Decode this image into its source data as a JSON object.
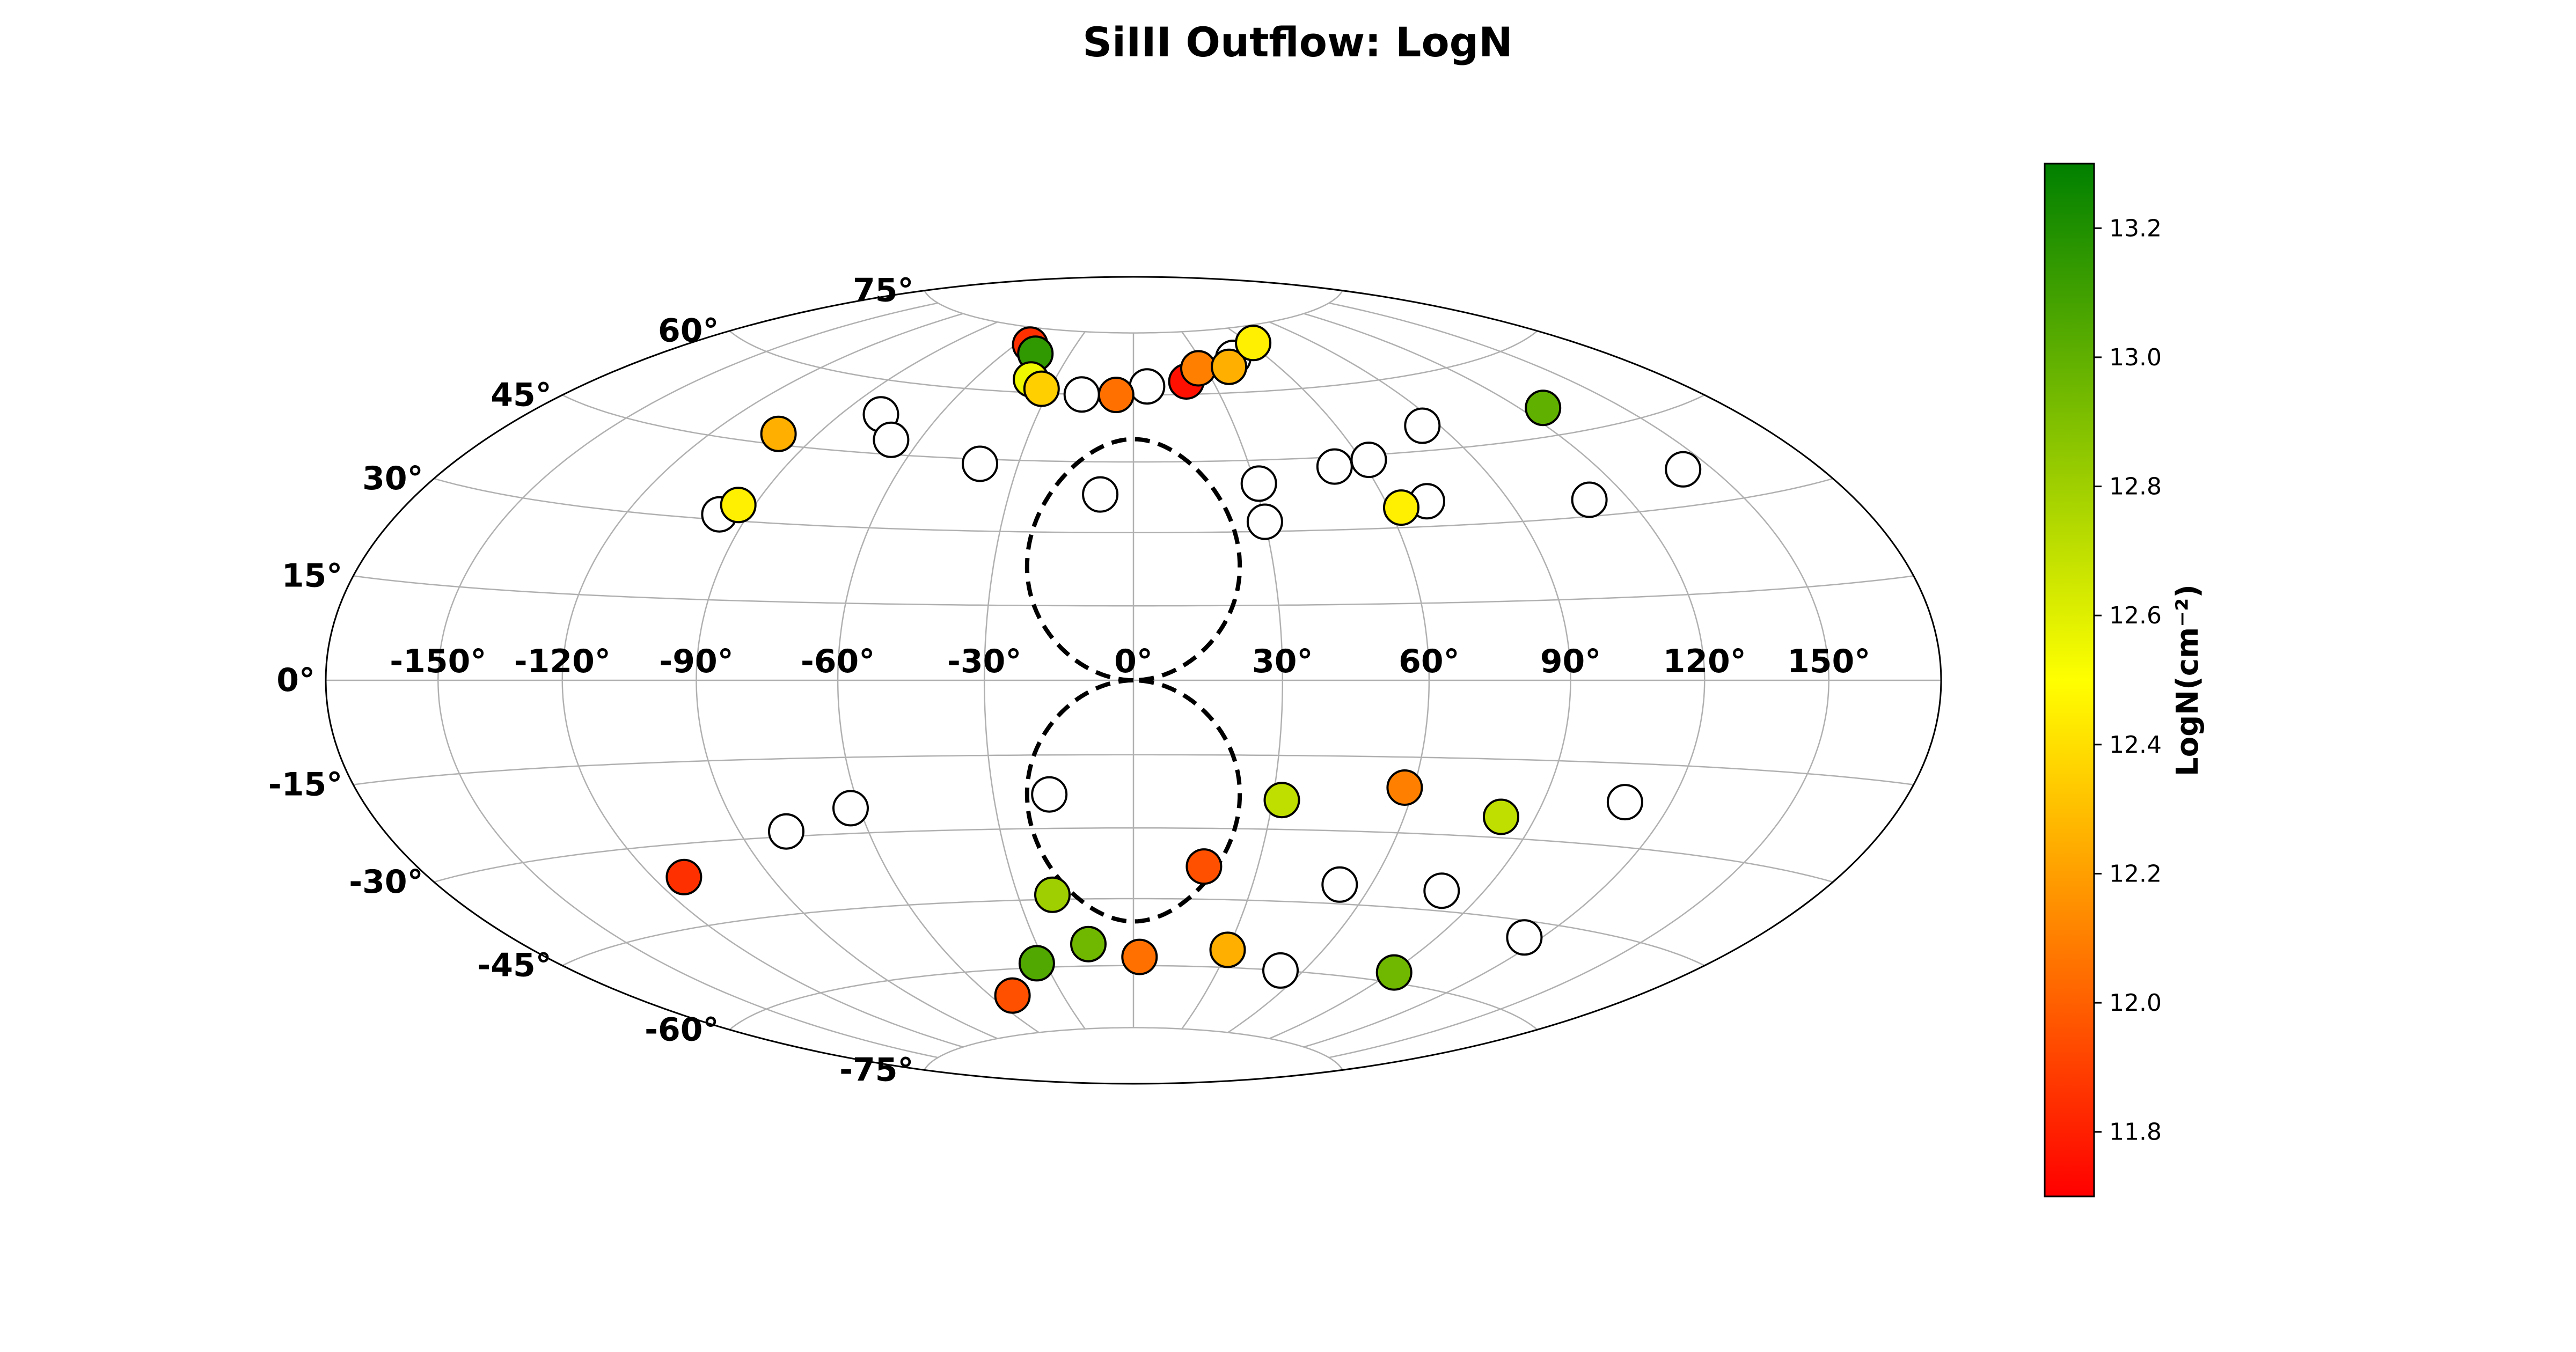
{
  "chart_data": {
    "type": "scatter",
    "projection": "aitoff-hammer",
    "title": "SiIII Outflow: LogN",
    "lon_tick_labels": [
      "-150°",
      "-120°",
      "-90°",
      "-60°",
      "-30°",
      "0°",
      "30°",
      "60°",
      "90°",
      "120°",
      "150°"
    ],
    "lon_ticks": [
      -150,
      -120,
      -90,
      -60,
      -30,
      0,
      30,
      60,
      90,
      120,
      150
    ],
    "lat_tick_labels": [
      "-75°",
      "-60°",
      "-45°",
      "-30°",
      "-15°",
      "0°",
      "15°",
      "30°",
      "45°",
      "60°",
      "75°"
    ],
    "lat_ticks": [
      -75,
      -60,
      -45,
      -30,
      -15,
      0,
      15,
      30,
      45,
      60,
      75
    ],
    "grid": true,
    "colorbar": {
      "label": "LogN(cm⁻²)",
      "vmin": 11.7,
      "vmax": 13.3,
      "colors": [
        "#ff0000",
        "#ffff00",
        "#008000"
      ],
      "tick_values": [
        11.8,
        12.0,
        12.2,
        12.4,
        12.6,
        12.8,
        13.0,
        13.2
      ],
      "tick_labels": [
        "11.8",
        "12.0",
        "12.2",
        "12.4",
        "12.6",
        "12.8",
        "13.0",
        "13.2"
      ]
    },
    "bubbles": {
      "style": "dashed",
      "lat_extent": 50,
      "lon_halfwidth": 24
    },
    "detections": [
      {
        "lon": -94,
        "lat": 33,
        "logN": 12.45
      },
      {
        "lon": -101,
        "lat": 47,
        "logN": 12.25
      },
      {
        "lon": -53,
        "lat": 71,
        "logN": 11.85
      },
      {
        "lon": -46,
        "lat": 69,
        "logN": 13.15
      },
      {
        "lon": -39,
        "lat": 63,
        "logN": 12.55
      },
      {
        "lon": -33,
        "lat": 61,
        "logN": 12.35
      },
      {
        "lon": -6,
        "lat": 60,
        "logN": 12.05
      },
      {
        "lon": 20,
        "lat": 63,
        "logN": 11.75
      },
      {
        "lon": 27,
        "lat": 66,
        "logN": 12.1
      },
      {
        "lon": 40,
        "lat": 66,
        "logN": 12.25
      },
      {
        "lon": 62,
        "lat": 71,
        "logN": 12.45
      },
      {
        "lon": 127,
        "lat": 50,
        "logN": 13.0
      },
      {
        "lon": 63,
        "lat": 34,
        "logN": 12.45
      },
      {
        "lon": 32,
        "lat": -24,
        "logN": 12.7
      },
      {
        "lon": 58,
        "lat": -21,
        "logN": 12.1
      },
      {
        "lon": 82,
        "lat": -26,
        "logN": 12.7
      },
      {
        "lon": 17,
        "lat": -38,
        "logN": 11.95
      },
      {
        "lon": 30,
        "lat": -56,
        "logN": 12.25
      },
      {
        "lon": 2,
        "lat": -58,
        "logN": 12.05
      },
      {
        "lon": -21,
        "lat": -44,
        "logN": 12.8
      },
      {
        "lon": -14,
        "lat": -55,
        "logN": 12.95
      },
      {
        "lon": -33,
        "lat": -59,
        "logN": 13.05
      },
      {
        "lon": -51,
        "lat": -66,
        "logN": 11.95
      },
      {
        "lon": -112,
        "lat": -36,
        "logN": 11.85
      },
      {
        "lon": 91,
        "lat": -58,
        "logN": 12.95
      }
    ],
    "non_detections": [
      {
        "lon": -78,
        "lat": 53
      },
      {
        "lon": -68,
        "lat": 48
      },
      {
        "lon": -97,
        "lat": 31
      },
      {
        "lon": -40,
        "lat": 44
      },
      {
        "lon": -18,
        "lat": 60
      },
      {
        "lon": 5,
        "lat": 62
      },
      {
        "lon": 45,
        "lat": 68
      },
      {
        "lon": -8,
        "lat": 38
      },
      {
        "lon": 31,
        "lat": 40
      },
      {
        "lon": 52,
        "lat": 43
      },
      {
        "lon": 62,
        "lat": 44
      },
      {
        "lon": 85,
        "lat": 50
      },
      {
        "lon": 30,
        "lat": 32
      },
      {
        "lon": 70,
        "lat": 35
      },
      {
        "lon": 110,
        "lat": 33
      },
      {
        "lon": 142,
        "lat": 36
      },
      {
        "lon": 109,
        "lat": -22
      },
      {
        "lon": -18,
        "lat": -23
      },
      {
        "lon": -79,
        "lat": -29
      },
      {
        "lon": -62,
        "lat": -25
      },
      {
        "lon": 52,
        "lat": -41
      },
      {
        "lon": 79,
        "lat": -41
      },
      {
        "lon": 115,
        "lat": -48
      },
      {
        "lon": 52,
        "lat": -60
      }
    ]
  }
}
